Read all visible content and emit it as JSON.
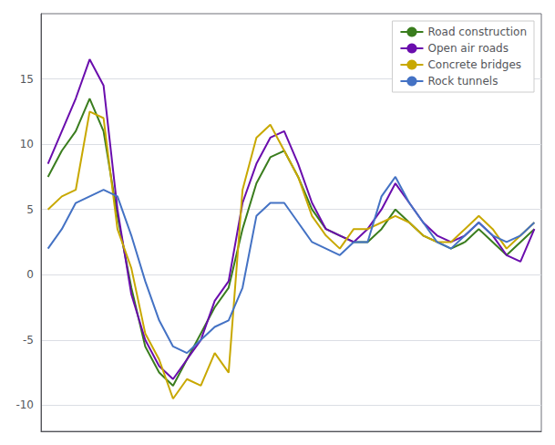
{
  "chart_data": {
    "type": "line",
    "series": [
      {
        "name": "Road construction",
        "color": "#3a7d1e",
        "values": [
          7.5,
          9.5,
          11.0,
          13.5,
          11.0,
          4.5,
          -1.0,
          -5.5,
          -7.5,
          -8.5,
          -6.5,
          -4.5,
          -2.5,
          -1.0,
          3.5,
          7.0,
          9.0,
          9.5,
          7.5,
          5.0,
          3.5,
          3.0,
          2.5,
          2.5,
          3.5,
          5.0,
          4.0,
          3.0,
          2.5,
          2.0,
          2.5,
          3.5,
          2.5,
          1.5,
          2.5,
          3.5
        ]
      },
      {
        "name": "Open air roads",
        "color": "#6a0dad",
        "values": [
          8.5,
          11.0,
          13.5,
          16.5,
          14.5,
          5.0,
          -1.5,
          -5.0,
          -7.0,
          -8.0,
          -6.5,
          -5.0,
          -2.0,
          -0.5,
          5.5,
          8.5,
          10.5,
          11.0,
          8.5,
          5.5,
          3.5,
          3.0,
          2.5,
          3.5,
          5.0,
          7.0,
          5.5,
          4.0,
          3.0,
          2.5,
          3.0,
          4.0,
          3.0,
          1.5,
          1.0,
          3.5
        ]
      },
      {
        "name": "Concrete bridges",
        "color": "#c8a800",
        "values": [
          5.0,
          6.0,
          6.5,
          12.5,
          12.0,
          3.5,
          0.5,
          -4.5,
          -6.5,
          -9.5,
          -8.0,
          -8.5,
          -6.0,
          -7.5,
          6.5,
          10.5,
          11.5,
          9.5,
          7.5,
          4.5,
          3.0,
          2.0,
          3.5,
          3.5,
          4.0,
          4.5,
          4.0,
          3.0,
          2.5,
          2.5,
          3.5,
          4.5,
          3.5,
          2.0,
          3.0,
          4.0
        ]
      },
      {
        "name": "Rock tunnels",
        "color": "#4472c4",
        "values": [
          2.0,
          3.5,
          5.5,
          6.0,
          6.5,
          6.0,
          3.0,
          -0.5,
          -3.5,
          -5.5,
          -6.0,
          -5.0,
          -4.0,
          -3.5,
          -1.0,
          4.5,
          5.5,
          5.5,
          4.0,
          2.5,
          2.0,
          1.5,
          2.5,
          2.5,
          6.0,
          7.5,
          5.5,
          4.0,
          2.5,
          2.0,
          3.0,
          4.0,
          3.0,
          2.5,
          3.0,
          4.0
        ]
      }
    ],
    "ylim": [
      -12,
      20
    ],
    "yticks": [
      -10,
      -5,
      0,
      5,
      10,
      15
    ],
    "grid": true,
    "legend": "upper right",
    "tick_labels": "y"
  }
}
